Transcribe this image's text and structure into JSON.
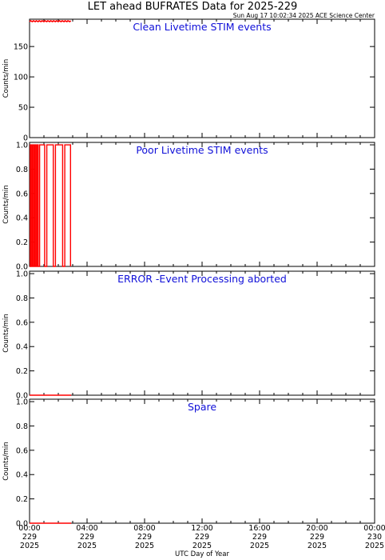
{
  "header": {
    "title": "LET ahead BUFRATES Data for 2025-229",
    "timestamp": "Sun Aug 17 10:02:34 2025 ACE Science Center"
  },
  "x_axis": {
    "label": "UTC Day of Year",
    "ticks": [
      {
        "h": 0,
        "lines": [
          "00:00",
          "229",
          "2025"
        ]
      },
      {
        "h": 4,
        "lines": [
          "04:00",
          "229",
          "2025"
        ]
      },
      {
        "h": 8,
        "lines": [
          "08:00",
          "229",
          "2025"
        ]
      },
      {
        "h": 12,
        "lines": [
          "12:00",
          "229",
          "2025"
        ]
      },
      {
        "h": 16,
        "lines": [
          "16:00",
          "229",
          "2025"
        ]
      },
      {
        "h": 20,
        "lines": [
          "20:00",
          "229",
          "2025"
        ]
      },
      {
        "h": 24,
        "lines": [
          "00:00",
          "230",
          "2025"
        ]
      }
    ],
    "xlim": [
      0,
      24
    ]
  },
  "colors": {
    "data": "#ff0000",
    "panel_title": "#1010d8",
    "axes": "#000000"
  },
  "chart_data": [
    {
      "type": "line",
      "title": "Clean Livetime STIM events",
      "ylabel": "Counts/min",
      "ylim": [
        0,
        195
      ],
      "yticks": [
        0,
        50,
        100,
        150
      ],
      "ytick_labels": [
        "0",
        "50",
        "100",
        "150"
      ],
      "series": [
        {
          "style": "noisy_band",
          "x": [
            0.0,
            2.9
          ],
          "y": [
            191,
            192.5
          ]
        }
      ]
    },
    {
      "type": "line",
      "title": "Poor Livetime STIM events",
      "ylabel": "Counts/min",
      "ylim": [
        0,
        1.02
      ],
      "yticks": [
        0,
        0.2,
        0.4,
        0.6,
        0.8,
        1.0
      ],
      "ytick_labels": [
        "0.0",
        "0.2",
        "0.4",
        "0.6",
        "0.8",
        "1.0"
      ],
      "series": [
        {
          "style": "step",
          "x": [
            0.0,
            0.05,
            0.05,
            0.12,
            0.12,
            0.2,
            0.2,
            0.28,
            0.28,
            0.36,
            0.36,
            0.44,
            0.44,
            0.52,
            0.52,
            0.6,
            0.6,
            0.7,
            0.7,
            1.05,
            1.05,
            1.2,
            1.2,
            1.65,
            1.65,
            1.8,
            1.8,
            2.3,
            2.3,
            2.45,
            2.45,
            2.85,
            2.85
          ],
          "y": [
            0,
            0,
            1,
            1,
            0,
            0,
            1,
            1,
            0,
            0,
            1,
            1,
            0,
            0,
            1,
            1,
            0,
            0,
            1,
            1,
            0,
            0,
            1,
            1,
            0,
            0,
            1,
            1,
            0,
            0,
            1,
            1,
            0
          ]
        }
      ]
    },
    {
      "type": "line",
      "title": "ERROR -Event Processing aborted",
      "ylabel": "Counts/min",
      "ylim": [
        0,
        1.02
      ],
      "yticks": [
        0,
        0.2,
        0.4,
        0.6,
        0.8,
        1.0
      ],
      "ytick_labels": [
        "0.0",
        "0.2",
        "0.4",
        "0.6",
        "0.8",
        "1.0"
      ],
      "series": [
        {
          "style": "line",
          "x": [
            0.0,
            2.9
          ],
          "y": [
            0,
            0
          ]
        }
      ]
    },
    {
      "type": "line",
      "title": "Spare",
      "ylabel": "Counts/min",
      "ylim": [
        0,
        1.02
      ],
      "yticks": [
        0,
        0.2,
        0.4,
        0.6,
        0.8,
        1.0
      ],
      "ytick_labels": [
        "0.0",
        "0.2",
        "0.4",
        "0.6",
        "0.8",
        "1.0"
      ],
      "series": [
        {
          "style": "line",
          "x": [
            0.0,
            2.9
          ],
          "y": [
            0,
            0
          ]
        }
      ]
    }
  ]
}
